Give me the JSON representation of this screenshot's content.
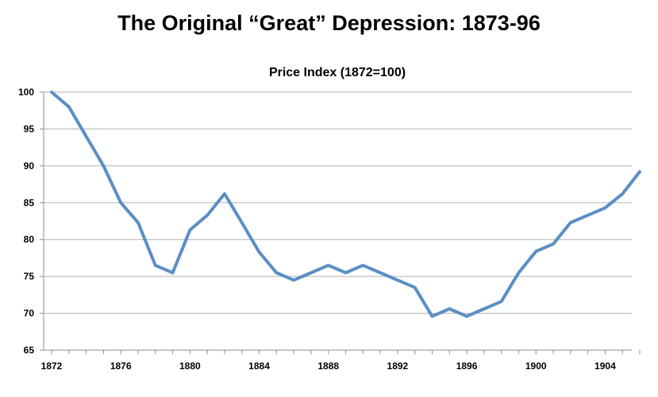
{
  "page": {
    "title": "The Original “Great” Depression: 1873-96"
  },
  "chart_data": {
    "type": "line",
    "title": "Price Index (1872=100)",
    "xlabel": "",
    "ylabel": "",
    "xlim": [
      1872,
      1906
    ],
    "ylim": [
      65,
      100
    ],
    "yticks": [
      65,
      70,
      75,
      80,
      85,
      90,
      95,
      100
    ],
    "xticks": [
      1872,
      1876,
      1880,
      1884,
      1888,
      1892,
      1896,
      1900,
      1904
    ],
    "grid": true,
    "line_color": "#5b8ec4",
    "series": [
      {
        "name": "Price Index",
        "x": [
          1872,
          1873,
          1874,
          1875,
          1876,
          1877,
          1878,
          1879,
          1880,
          1881,
          1882,
          1883,
          1884,
          1885,
          1886,
          1887,
          1888,
          1889,
          1890,
          1891,
          1892,
          1893,
          1894,
          1895,
          1896,
          1897,
          1898,
          1899,
          1900,
          1901,
          1902,
          1903,
          1904,
          1905,
          1906
        ],
        "values": [
          100,
          98,
          94,
          90,
          85,
          82.3,
          76.5,
          75.5,
          81.3,
          83.3,
          86.2,
          82.3,
          78.3,
          75.5,
          74.5,
          75.5,
          76.5,
          75.5,
          76.5,
          75.5,
          74.5,
          73.5,
          69.6,
          70.6,
          69.6,
          70.6,
          71.6,
          75.5,
          78.4,
          79.4,
          82.3,
          83.3,
          84.3,
          86.2,
          89.2
        ]
      }
    ]
  }
}
